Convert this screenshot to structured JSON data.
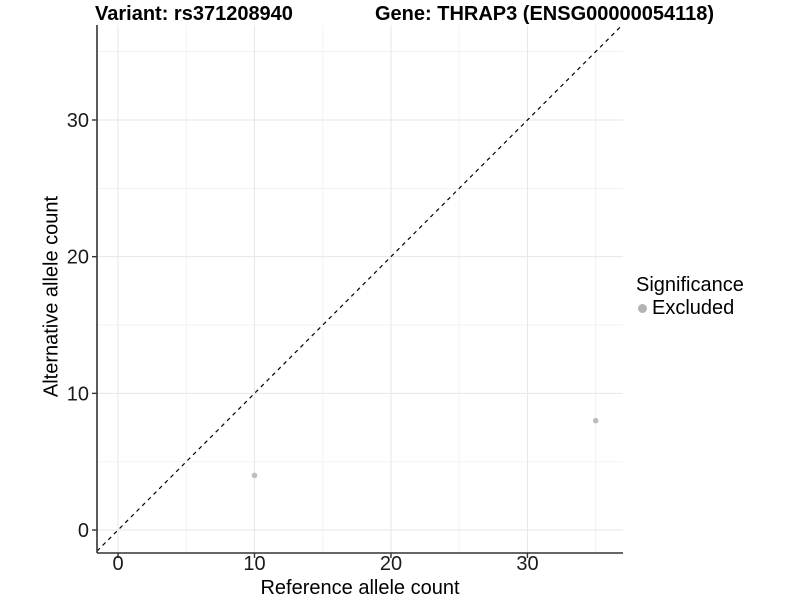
{
  "title": {
    "variant": "Variant: rs371208940",
    "gene": "Gene: THRAP3 (ENSG00000054118)"
  },
  "axes": {
    "x": {
      "label": "Reference allele count",
      "ticks": [
        0,
        10,
        20,
        30
      ],
      "minor_ticks": [
        5,
        15,
        25,
        35
      ]
    },
    "y": {
      "label": "Alternative allele count",
      "ticks": [
        0,
        10,
        20,
        30
      ],
      "minor_ticks": [
        5,
        15,
        25,
        35
      ]
    }
  },
  "legend": {
    "title": "Significance",
    "items": [
      {
        "label": "Excluded",
        "marker_color": "#b3b3b3"
      }
    ]
  },
  "colors": {
    "background": "#ffffff",
    "axis_line": "#333333",
    "grid_major": "#e7e7e7",
    "grid_minor": "#f2f2f2",
    "tick_label": "#1a1a1a",
    "point": "#bdbdbd",
    "identity_line": "#000000"
  },
  "chart_data": {
    "type": "scatter",
    "title": "Variant: rs371208940 | Gene: THRAP3 (ENSG00000054118)",
    "xlabel": "Reference allele count",
    "ylabel": "Alternative allele count",
    "xlim": [
      -1.54,
      37.0
    ],
    "ylim": [
      -1.68,
      36.95
    ],
    "xticks": [
      0,
      10,
      20,
      30
    ],
    "yticks": [
      0,
      10,
      20,
      30
    ],
    "minor_xticks": [
      5,
      15,
      25,
      35
    ],
    "minor_yticks": [
      5,
      15,
      25,
      35
    ],
    "grid": true,
    "legend_position": "right",
    "series": [
      {
        "name": "Excluded",
        "color": "#bdbdbd",
        "points": [
          [
            10,
            4
          ],
          [
            35,
            8
          ]
        ]
      }
    ],
    "reference_line": {
      "type": "identity",
      "slope": 1,
      "intercept": 0,
      "style": "dashed"
    }
  }
}
